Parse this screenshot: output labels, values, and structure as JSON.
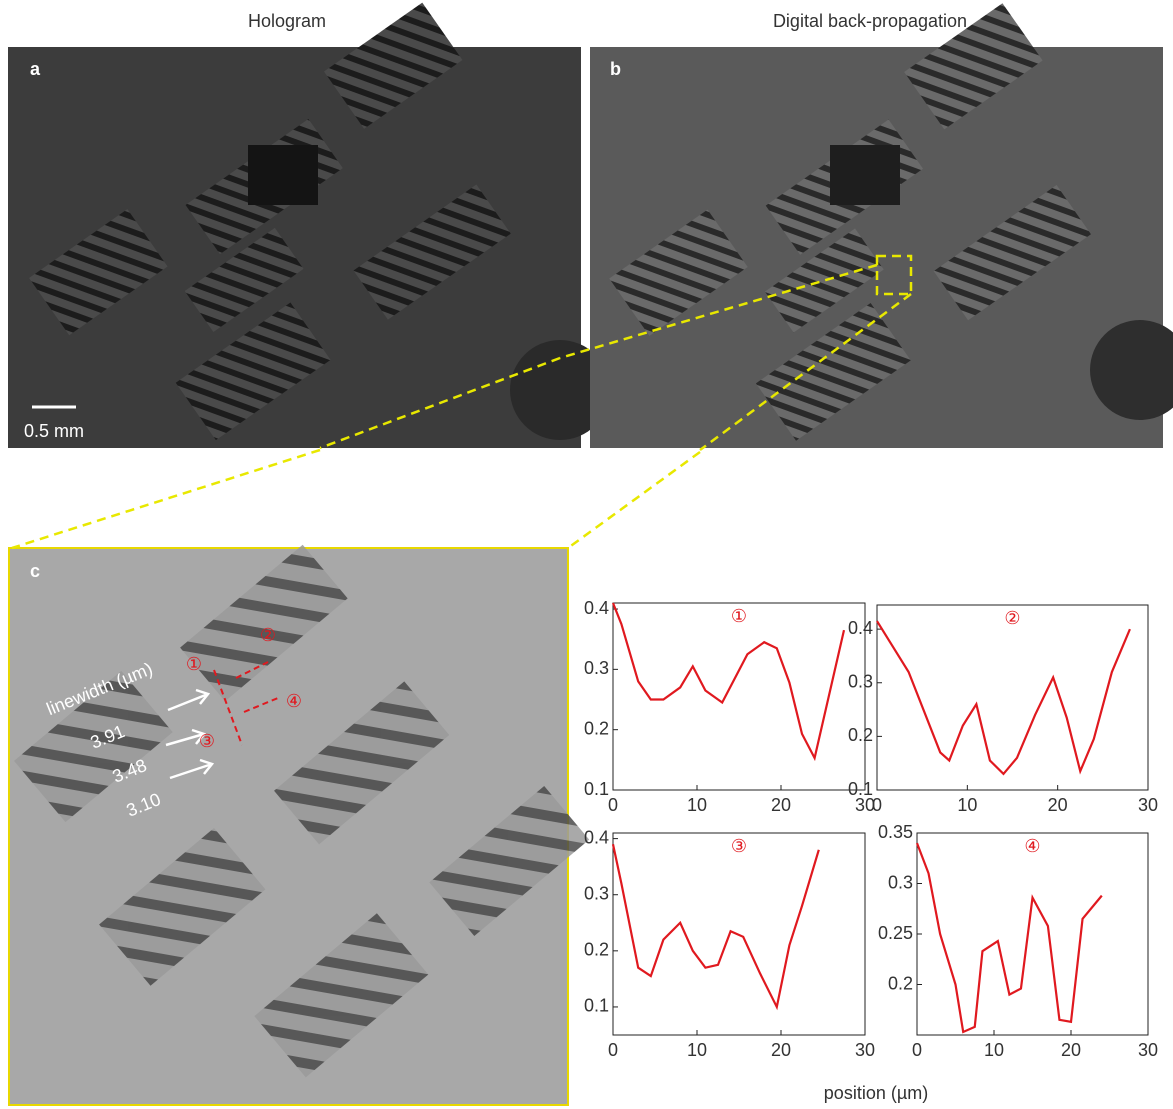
{
  "panels": {
    "title_a": "Hologram",
    "title_b": "Digital back-propagation",
    "label_a": "a",
    "label_b": "b",
    "label_c": "c",
    "scale_bar": "0.5 mm",
    "linewidth_label": "linewidth  (µm)",
    "linewidths": [
      "3.91",
      "3.48",
      "3.10"
    ],
    "markers": [
      "①",
      "②",
      "③",
      "④"
    ],
    "x_label": "position (µm)"
  },
  "chart_data": [
    {
      "type": "line",
      "title": "①",
      "xlim": [
        0,
        30
      ],
      "xticks": [
        0,
        10,
        20,
        30
      ],
      "ylim": [
        0.1,
        0.41
      ],
      "yticks": [
        0.1,
        0.2,
        0.3,
        0.4
      ],
      "x": [
        0,
        1,
        3,
        4.5,
        6,
        8,
        9.5,
        11,
        13,
        14.5,
        16,
        18,
        19.5,
        21,
        22.5,
        24,
        27.5
      ],
      "series": [
        {
          "color": "#e0191f",
          "values": [
            0.41,
            0.375,
            0.28,
            0.25,
            0.25,
            0.27,
            0.305,
            0.265,
            0.245,
            0.285,
            0.325,
            0.345,
            0.335,
            0.278,
            0.193,
            0.153,
            0.365
          ]
        }
      ]
    },
    {
      "type": "line",
      "title": "②",
      "xlim": [
        0,
        30
      ],
      "xticks": [
        0,
        10,
        20,
        30
      ],
      "ylim": [
        0.1,
        0.445
      ],
      "yticks": [
        0.1,
        0.2,
        0.3,
        0.4
      ],
      "x": [
        0,
        3.5,
        7,
        8,
        9.5,
        11,
        12.5,
        14,
        15.5,
        17.5,
        19.5,
        21,
        22.5,
        24,
        26,
        28
      ],
      "series": [
        {
          "color": "#e0191f",
          "values": [
            0.415,
            0.32,
            0.17,
            0.155,
            0.22,
            0.26,
            0.155,
            0.13,
            0.16,
            0.24,
            0.31,
            0.235,
            0.135,
            0.195,
            0.32,
            0.4
          ]
        }
      ]
    },
    {
      "type": "line",
      "title": "③",
      "xlim": [
        0,
        30
      ],
      "xticks": [
        0,
        10,
        20,
        30
      ],
      "ylim": [
        0.05,
        0.41
      ],
      "yticks": [
        0.1,
        0.2,
        0.3,
        0.4
      ],
      "x": [
        0,
        1,
        3,
        4.5,
        6,
        8,
        9.5,
        11,
        12.5,
        14,
        15.5,
        17.5,
        19.5,
        21,
        22.5,
        24.5
      ],
      "series": [
        {
          "color": "#e0191f",
          "values": [
            0.39,
            0.32,
            0.17,
            0.155,
            0.22,
            0.25,
            0.2,
            0.17,
            0.175,
            0.235,
            0.225,
            0.16,
            0.1,
            0.21,
            0.28,
            0.38
          ]
        }
      ]
    },
    {
      "type": "line",
      "title": "④",
      "xlim": [
        0,
        30
      ],
      "xticks": [
        0,
        10,
        20,
        30
      ],
      "ylim": [
        0.15,
        0.35
      ],
      "yticks": [
        0.2,
        0.25,
        0.3,
        0.35
      ],
      "x": [
        0,
        1.5,
        3,
        5,
        6,
        7.5,
        8.5,
        10.5,
        12,
        13.5,
        15,
        17,
        18.5,
        20,
        21.5,
        24
      ],
      "series": [
        {
          "color": "#e0191f",
          "values": [
            0.34,
            0.31,
            0.25,
            0.2,
            0.153,
            0.158,
            0.233,
            0.243,
            0.19,
            0.196,
            0.286,
            0.258,
            0.165,
            0.163,
            0.265,
            0.288
          ]
        }
      ]
    }
  ]
}
